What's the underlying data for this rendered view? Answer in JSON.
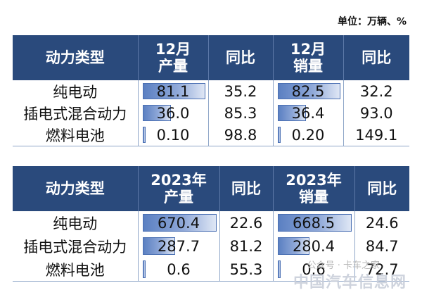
{
  "unit_label": "单位：万辆、%",
  "table1": {
    "headers": [
      "动力类型",
      "12月\n产量",
      "同比",
      "12月\n销量",
      "同比"
    ],
    "rows": [
      {
        "type": "纯电动",
        "production": "81.1",
        "prod_yoy": "35.2",
        "sales": "82.5",
        "sales_yoy": "32.2"
      },
      {
        "type": "插电式混合动力",
        "production": "36.0",
        "prod_yoy": "85.3",
        "sales": "36.4",
        "sales_yoy": "93.0"
      },
      {
        "type": "燃料电池",
        "production": "0.10",
        "prod_yoy": "98.8",
        "sales": "0.20",
        "sales_yoy": "149.1"
      }
    ]
  },
  "table2": {
    "headers": [
      "动力类型",
      "2023年\n产量",
      "同比",
      "2023年\n销量",
      "同比"
    ],
    "rows": [
      {
        "type": "纯电动",
        "production": "670.4",
        "prod_yoy": "22.6",
        "sales": "668.5",
        "sales_yoy": "24.6"
      },
      {
        "type": "插电式混合动力",
        "production": "287.7",
        "prod_yoy": "81.2",
        "sales": "280.4",
        "sales_yoy": "84.7"
      },
      {
        "type": "燃料电池",
        "production": "0.6",
        "prod_yoy": "55.3",
        "sales": "0.6",
        "sales_yoy": "72.7"
      }
    ]
  },
  "chart_data": [
    {
      "type": "table",
      "columns": [
        "动力类型",
        "12月产量",
        "同比",
        "12月销量",
        "同比"
      ],
      "categories": [
        "纯电动",
        "插电式混合动力",
        "燃料电池"
      ],
      "series": [
        {
          "name": "12月产量",
          "values": [
            81.1,
            36.0,
            0.1
          ]
        },
        {
          "name": "同比",
          "values": [
            35.2,
            85.3,
            98.8
          ]
        },
        {
          "name": "12月销量",
          "values": [
            82.5,
            36.4,
            0.2
          ]
        },
        {
          "name": "同比",
          "values": [
            32.2,
            93.0,
            149.1
          ]
        }
      ]
    },
    {
      "type": "table",
      "columns": [
        "动力类型",
        "2023年产量",
        "同比",
        "2023年销量",
        "同比"
      ],
      "categories": [
        "纯电动",
        "插电式混合动力",
        "燃料电池"
      ],
      "series": [
        {
          "name": "2023年产量",
          "values": [
            670.4,
            287.7,
            0.6
          ]
        },
        {
          "name": "同比",
          "values": [
            22.6,
            81.2,
            55.3
          ]
        },
        {
          "name": "2023年销量",
          "values": [
            668.5,
            280.4,
            0.6
          ]
        },
        {
          "name": "同比",
          "values": [
            24.6,
            84.7,
            72.7
          ]
        }
      ]
    }
  ],
  "watermark": {
    "pub": "公众号 · 卡车之家",
    "site": "中国汽车信息网"
  },
  "colors": {
    "header_bg": "#2a4a7c",
    "bar": "#5b80c2",
    "border": "#8fa6c8"
  }
}
